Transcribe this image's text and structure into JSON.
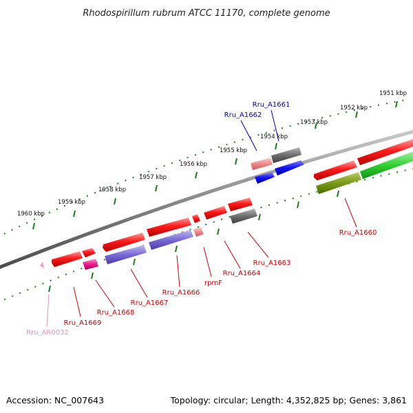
{
  "title": "Rhodospirillum rubrum ATCC 11170, complete genome",
  "footer": {
    "accession": "Accession: NC_007643",
    "summary": "Topology: circular; Length: 4,352,825 bp; Genes: 3,861"
  },
  "colors": {
    "backbone": "#8a8a8a",
    "tick": "#1f7a1f",
    "red_gene": "#ff1a1a",
    "pink_gene": "#f08a8a",
    "gray_gene": "#6e6e6e",
    "blue_gene": "#1010ee",
    "purple_gene": "#7a6ad8",
    "magenta_gene": "#ee1a90",
    "olive_gene": "#7a9a1a",
    "green_gene": "#30d030",
    "label_red": "#cc0000",
    "label_blue": "#0000aa",
    "label_pink": "#e890c0"
  },
  "kbp_labels": [
    {
      "text": "1951 kbp"
    },
    {
      "text": "1952 kbp"
    },
    {
      "text": "1953 kbp"
    },
    {
      "text": "1954 kbp"
    },
    {
      "text": "1955 kbp"
    },
    {
      "text": "1956 kbp"
    },
    {
      "text": "1957 kbp"
    },
    {
      "text": "1958 kbp"
    },
    {
      "text": "1959 kbp"
    },
    {
      "text": "1960 kbp"
    }
  ],
  "gene_labels": [
    {
      "text": "Rru_A1661",
      "color": "blue"
    },
    {
      "text": "Rru_A1662",
      "color": "blue"
    },
    {
      "text": "Rru_A1660",
      "color": "red"
    },
    {
      "text": "Rru_A1663",
      "color": "red"
    },
    {
      "text": "Rru_A1664",
      "color": "red"
    },
    {
      "text": "rpmF",
      "color": "red"
    },
    {
      "text": "Rru_A1666",
      "color": "red"
    },
    {
      "text": "Rru_A1667",
      "color": "red"
    },
    {
      "text": "Rru_A1668",
      "color": "red"
    },
    {
      "text": "Rru_A1669",
      "color": "red"
    },
    {
      "text": "Rru_AR0032",
      "color": "pink"
    }
  ]
}
